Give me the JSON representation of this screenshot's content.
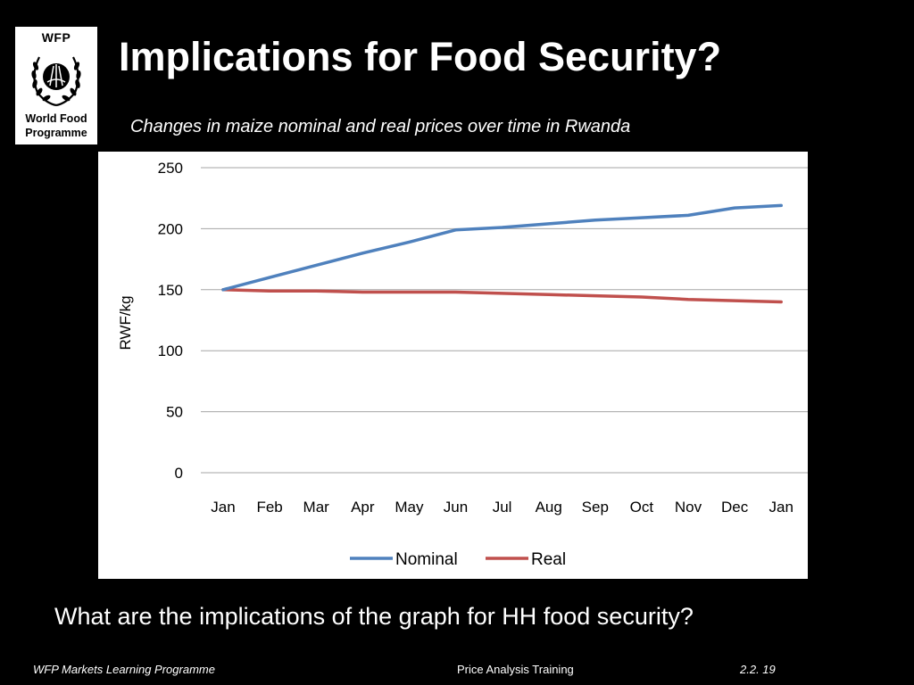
{
  "logo": {
    "acronym": "WFP",
    "line1": "World Food",
    "line2": "Programme"
  },
  "slide": {
    "title": "Implications for Food Security?",
    "subtitle": "Changes in maize nominal and real prices over time in Rwanda",
    "question": "What are the implications of the graph for HH food security?"
  },
  "footer": {
    "left": "WFP Markets Learning Programme",
    "center": "Price Analysis Training",
    "right": "2.2. 19"
  },
  "chart_data": {
    "type": "line",
    "title": "",
    "xlabel": "",
    "ylabel": "RWF/kg",
    "categories": [
      "Jan",
      "Feb",
      "Mar",
      "Apr",
      "May",
      "Jun",
      "Jul",
      "Aug",
      "Sep",
      "Oct",
      "Nov",
      "Dec",
      "Jan"
    ],
    "ylim": [
      0,
      250
    ],
    "yticks": [
      0,
      50,
      100,
      150,
      200,
      250
    ],
    "grid": true,
    "legend_position": "bottom",
    "series": [
      {
        "name": "Nominal",
        "color": "#4F81BD",
        "values": [
          150,
          160,
          170,
          180,
          189,
          199,
          201,
          204,
          207,
          209,
          211,
          217,
          219
        ]
      },
      {
        "name": "Real",
        "color": "#C0504D",
        "values": [
          150,
          149,
          149,
          148,
          148,
          148,
          147,
          146,
          145,
          144,
          142,
          141,
          140
        ]
      }
    ]
  }
}
